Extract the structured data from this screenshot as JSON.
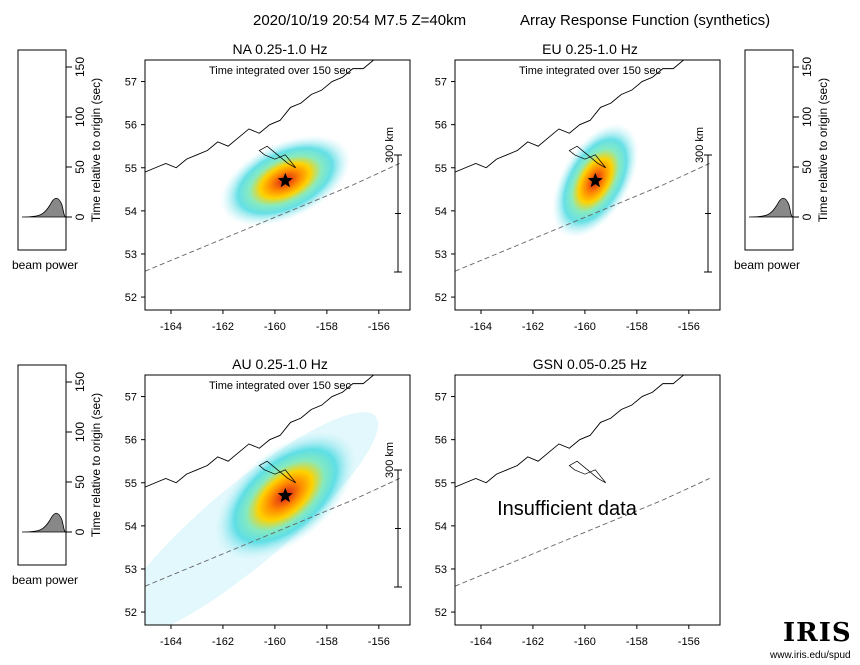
{
  "header": {
    "event": "2020/10/19 20:54  M7.5  Z=40km",
    "title": "Array Response Function (synthetics)"
  },
  "time_note": "Time integrated over 150 sec",
  "scale_label": "300 km",
  "beam_axis": {
    "ylabel": "Time relative to origin (sec)",
    "ticks": [
      "0",
      "50",
      "100",
      "150"
    ],
    "caption": "beam power"
  },
  "map_axes": {
    "lon_ticks": [
      "-164",
      "-162",
      "-160",
      "-158",
      "-156"
    ],
    "lat_ticks": [
      "52",
      "53",
      "54",
      "55",
      "56",
      "57"
    ]
  },
  "panels": [
    {
      "id": "NA",
      "label": "NA  0.25-1.0 Hz",
      "orientation": 25,
      "spread": 1.0,
      "has_data": true
    },
    {
      "id": "EU",
      "label": "EU  0.25-1.0 Hz",
      "orientation": 60,
      "spread": 0.9,
      "has_data": true
    },
    {
      "id": "AU",
      "label": "AU  0.25-1.0 Hz",
      "orientation": 40,
      "spread": 1.2,
      "has_data": true
    },
    {
      "id": "GSN",
      "label": "GSN  0.05-0.25 Hz",
      "has_data": false,
      "message": "Insufficient data"
    }
  ],
  "epicenter": {
    "lon": -159.6,
    "lat": 54.7
  },
  "colors": {
    "peak": "#d81b1b",
    "mid": "#ffd200",
    "low": "#3fd8e0",
    "faint": "#bff0f8",
    "trace_fill": "#888888"
  },
  "branding": {
    "logo": "IRIS",
    "url": "www.iris.edu/spud"
  }
}
